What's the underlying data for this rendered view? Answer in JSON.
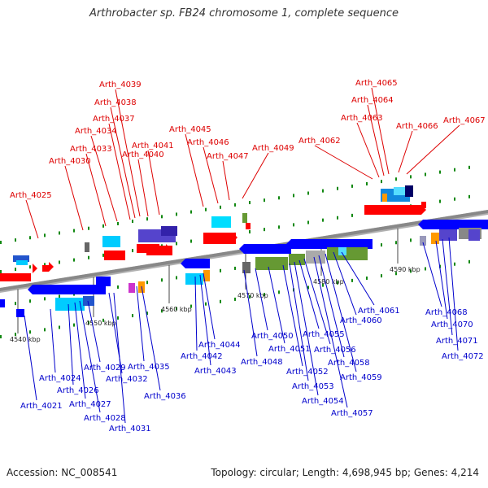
{
  "title": "Arthrobacter sp. FB24 chromosome 1, complete sequence",
  "footer": {
    "accession": "Accession: NC_008541",
    "summary": "Topology: circular; Length: 4,698,945 bp; Genes: 4,214"
  },
  "colors": {
    "forward_label": "#dd0000",
    "reverse_label": "#0000cc",
    "forward_gene": "#ff0000",
    "reverse_gene": "#0000ff",
    "backbone": "#888888",
    "tick": "#118811"
  },
  "scale_ticks": [
    "4540 kbp",
    "4550 kbp",
    "4560 kbp",
    "4570 kbp",
    "4580 kbp",
    "4590 kbp"
  ],
  "forward_genes": [
    "Arth_4025",
    "Arth_4030",
    "Arth_4033",
    "Arth_4034",
    "Arth_4037",
    "Arth_4038",
    "Arth_4039",
    "Arth_4040",
    "Arth_4041",
    "Arth_4045",
    "Arth_4046",
    "Arth_4047",
    "Arth_4049",
    "Arth_4062",
    "Arth_4063",
    "Arth_4064",
    "Arth_4065",
    "Arth_4066",
    "Arth_4067"
  ],
  "reverse_genes": [
    "Arth_4021",
    "Arth_4024",
    "Arth_4026",
    "Arth_4027",
    "Arth_4028",
    "Arth_4029",
    "Arth_4031",
    "Arth_4032",
    "Arth_4035",
    "Arth_4036",
    "Arth_4042",
    "Arth_4043",
    "Arth_4044",
    "Arth_4048",
    "Arth_4050",
    "Arth_4051",
    "Arth_4052",
    "Arth_4053",
    "Arth_4054",
    "Arth_4055",
    "Arth_4056",
    "Arth_4057",
    "Arth_4058",
    "Arth_4059",
    "Arth_4060",
    "Arth_4061",
    "Arth_4068",
    "Arth_4070",
    "Arth_4071",
    "Arth_4072"
  ]
}
